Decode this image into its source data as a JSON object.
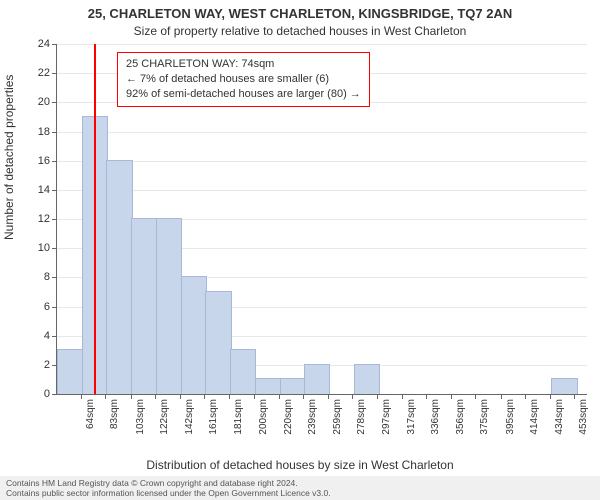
{
  "title_main": "25, CHARLETON WAY, WEST CHARLETON, KINGSBRIDGE, TQ7 2AN",
  "title_sub": "Size of property relative to detached houses in West Charleton",
  "ylabel": "Number of detached properties",
  "xlabel": "Distribution of detached houses by size in West Charleton",
  "footer_line1": "Contains HM Land Registry data © Crown copyright and database right 2024.",
  "footer_line2": "Contains public sector information licensed under the Open Government Licence v3.0.",
  "chart": {
    "type": "histogram",
    "ylim": [
      0,
      24
    ],
    "ytick_step": 2,
    "xlim": [
      45,
      463
    ],
    "bar_color": "#c8d6eb",
    "bar_border": "#a8b8d8",
    "grid_color": "#e8e8e8",
    "text_color": "#333333",
    "background_color": "#ffffff",
    "marker_color": "#ff0000",
    "annotation_border": "#ff0000",
    "label_fontsize": 12,
    "tick_fontsize": 11,
    "x_tick_labels": [
      "64sqm",
      "83sqm",
      "103sqm",
      "122sqm",
      "142sqm",
      "161sqm",
      "181sqm",
      "200sqm",
      "220sqm",
      "239sqm",
      "259sqm",
      "278sqm",
      "297sqm",
      "317sqm",
      "336sqm",
      "356sqm",
      "375sqm",
      "395sqm",
      "414sqm",
      "434sqm",
      "453sqm"
    ],
    "x_tick_positions": [
      64,
      83,
      103,
      122,
      142,
      161,
      181,
      200,
      220,
      239,
      259,
      278,
      297,
      317,
      336,
      356,
      375,
      395,
      414,
      434,
      453
    ],
    "bin_width": 19.5,
    "bins": [
      {
        "x": 45,
        "count": 3
      },
      {
        "x": 64.5,
        "count": 19
      },
      {
        "x": 84,
        "count": 16
      },
      {
        "x": 103.5,
        "count": 12
      },
      {
        "x": 123,
        "count": 12
      },
      {
        "x": 142.5,
        "count": 8
      },
      {
        "x": 162,
        "count": 7
      },
      {
        "x": 181.5,
        "count": 3
      },
      {
        "x": 201,
        "count": 1
      },
      {
        "x": 220.5,
        "count": 1
      },
      {
        "x": 240,
        "count": 2
      },
      {
        "x": 259.5,
        "count": 0
      },
      {
        "x": 279,
        "count": 2
      },
      {
        "x": 298.5,
        "count": 0
      },
      {
        "x": 318,
        "count": 0
      },
      {
        "x": 337.5,
        "count": 0
      },
      {
        "x": 357,
        "count": 0
      },
      {
        "x": 376.5,
        "count": 0
      },
      {
        "x": 396,
        "count": 0
      },
      {
        "x": 415.5,
        "count": 0
      },
      {
        "x": 435,
        "count": 1
      }
    ],
    "marker_value": 74,
    "annotation": {
      "line1": "25 CHARLETON WAY: 74sqm",
      "line2": "← 7% of detached houses are smaller (6)",
      "line3": "92% of semi-detached houses are larger (80) →"
    }
  }
}
